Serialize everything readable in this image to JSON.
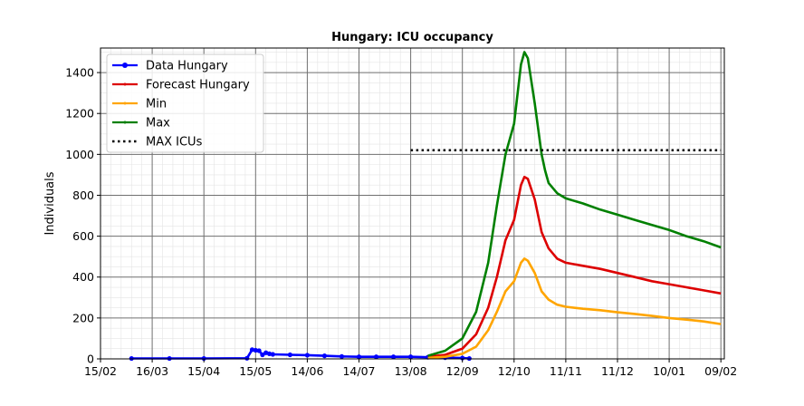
{
  "chart_data": {
    "type": "line",
    "title": "Hungary: ICU occupancy",
    "xlabel": "",
    "ylabel": "Individuals",
    "xlim": [
      0,
      362
    ],
    "ylim": [
      0,
      1520
    ],
    "x_ticks": [
      {
        "x": 0,
        "label": "15/02"
      },
      {
        "x": 30,
        "label": "16/03"
      },
      {
        "x": 60,
        "label": "15/04"
      },
      {
        "x": 90,
        "label": "15/05"
      },
      {
        "x": 120,
        "label": "14/06"
      },
      {
        "x": 150,
        "label": "14/07"
      },
      {
        "x": 180,
        "label": "13/08"
      },
      {
        "x": 210,
        "label": "12/09"
      },
      {
        "x": 240,
        "label": "12/10"
      },
      {
        "x": 270,
        "label": "11/11"
      },
      {
        "x": 300,
        "label": "11/12"
      },
      {
        "x": 330,
        "label": "10/01"
      },
      {
        "x": 360,
        "label": "09/02"
      }
    ],
    "y_ticks": [
      0,
      200,
      400,
      600,
      800,
      1000,
      1200,
      1400
    ],
    "grid": true,
    "legend_position": "top-left",
    "series": [
      {
        "name": "Data Hungary",
        "color": "#0000ff",
        "marker": "circle",
        "points": [
          [
            18,
            2
          ],
          [
            40,
            2
          ],
          [
            60,
            2
          ],
          [
            85,
            3
          ],
          [
            88,
            45
          ],
          [
            90,
            42
          ],
          [
            92,
            40
          ],
          [
            94,
            20
          ],
          [
            96,
            30
          ],
          [
            98,
            25
          ],
          [
            100,
            22
          ],
          [
            110,
            20
          ],
          [
            120,
            18
          ],
          [
            130,
            15
          ],
          [
            140,
            12
          ],
          [
            150,
            10
          ],
          [
            160,
            10
          ],
          [
            170,
            10
          ],
          [
            180,
            10
          ],
          [
            190,
            8
          ],
          [
            200,
            6
          ],
          [
            210,
            4
          ],
          [
            214,
            2
          ]
        ]
      },
      {
        "name": "Forecast Hungary",
        "color": "#dd0000",
        "marker": "dot",
        "points": [
          [
            190,
            10
          ],
          [
            200,
            20
          ],
          [
            210,
            50
          ],
          [
            218,
            120
          ],
          [
            225,
            250
          ],
          [
            230,
            400
          ],
          [
            235,
            580
          ],
          [
            240,
            680
          ],
          [
            244,
            850
          ],
          [
            246,
            890
          ],
          [
            248,
            880
          ],
          [
            252,
            780
          ],
          [
            256,
            620
          ],
          [
            260,
            540
          ],
          [
            265,
            490
          ],
          [
            270,
            470
          ],
          [
            280,
            455
          ],
          [
            290,
            440
          ],
          [
            300,
            420
          ],
          [
            310,
            400
          ],
          [
            320,
            380
          ],
          [
            330,
            365
          ],
          [
            340,
            350
          ],
          [
            350,
            335
          ],
          [
            360,
            320
          ]
        ]
      },
      {
        "name": "Min",
        "color": "#ffa500",
        "marker": "dot",
        "points": [
          [
            190,
            5
          ],
          [
            200,
            10
          ],
          [
            210,
            25
          ],
          [
            218,
            60
          ],
          [
            225,
            140
          ],
          [
            230,
            230
          ],
          [
            235,
            330
          ],
          [
            240,
            380
          ],
          [
            244,
            470
          ],
          [
            246,
            490
          ],
          [
            248,
            480
          ],
          [
            252,
            420
          ],
          [
            256,
            330
          ],
          [
            260,
            290
          ],
          [
            265,
            265
          ],
          [
            270,
            255
          ],
          [
            280,
            245
          ],
          [
            290,
            238
          ],
          [
            300,
            228
          ],
          [
            310,
            220
          ],
          [
            320,
            210
          ],
          [
            330,
            200
          ],
          [
            340,
            192
          ],
          [
            350,
            183
          ],
          [
            360,
            170
          ]
        ]
      },
      {
        "name": "Max",
        "color": "#008000",
        "marker": "dot",
        "points": [
          [
            190,
            15
          ],
          [
            200,
            40
          ],
          [
            210,
            100
          ],
          [
            218,
            230
          ],
          [
            225,
            470
          ],
          [
            230,
            750
          ],
          [
            235,
            1000
          ],
          [
            240,
            1150
          ],
          [
            244,
            1440
          ],
          [
            246,
            1500
          ],
          [
            248,
            1470
          ],
          [
            252,
            1250
          ],
          [
            256,
            1000
          ],
          [
            258,
            920
          ],
          [
            260,
            860
          ],
          [
            265,
            810
          ],
          [
            270,
            785
          ],
          [
            280,
            760
          ],
          [
            290,
            730
          ],
          [
            300,
            705
          ],
          [
            310,
            680
          ],
          [
            320,
            655
          ],
          [
            330,
            630
          ],
          [
            340,
            600
          ],
          [
            350,
            575
          ],
          [
            360,
            545
          ]
        ]
      },
      {
        "name": "MAX ICUs",
        "color": "#000000",
        "style": "dotted",
        "points": [
          [
            180,
            1020
          ],
          [
            360,
            1020
          ]
        ]
      }
    ]
  }
}
